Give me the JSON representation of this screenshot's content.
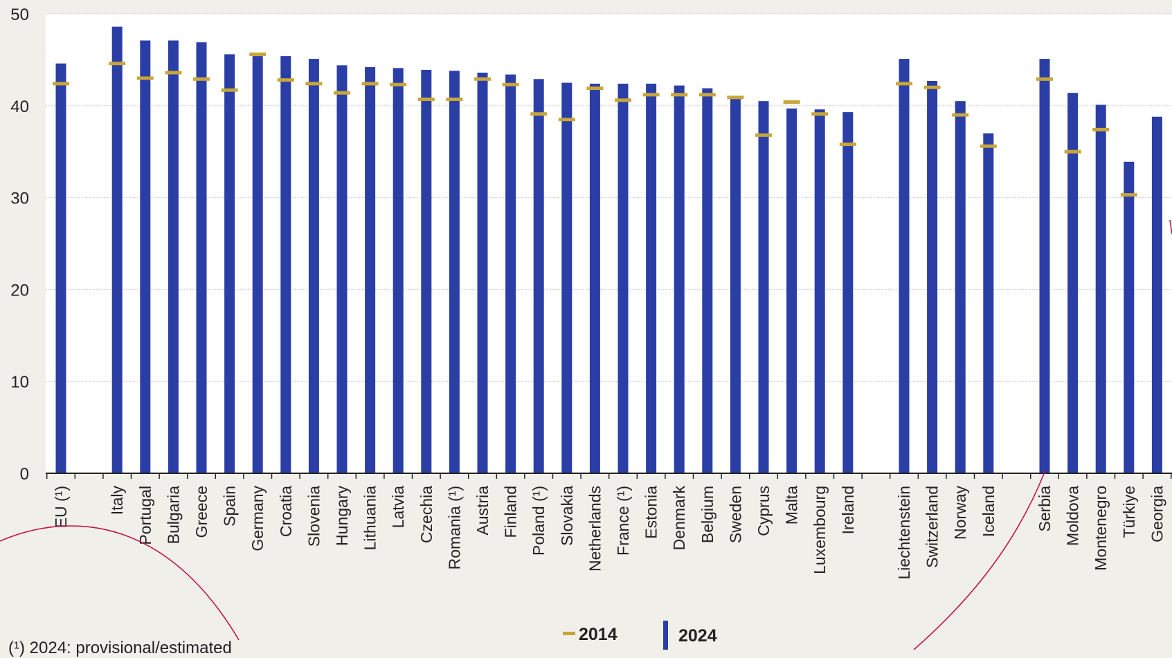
{
  "chart_data": {
    "type": "bar",
    "title": "",
    "xlabel": "",
    "ylabel": "",
    "ylim": [
      0,
      50
    ],
    "y_ticks": [
      0,
      10,
      20,
      30,
      40,
      50
    ],
    "grid": true,
    "legend_position": "bottom-center",
    "colors": {
      "bar_2024": "#2a3ea6",
      "marker_2014": "#c8a63a",
      "background": "#f1efea",
      "plot_background": "#ffffff",
      "annotation_curve": "#c0144a"
    },
    "groups": [
      {
        "categories": [
          "EU (¹)"
        ],
        "values_2024": [
          44.6
        ],
        "values_2014": [
          42.4
        ]
      },
      {
        "categories": [
          "Italy",
          "Portugal",
          "Bulgaria",
          "Greece",
          "Spain",
          "Germany",
          "Croatia",
          "Slovenia",
          "Hungary",
          "Lithuania",
          "Latvia",
          "Czechia",
          "Romania (¹)",
          "Austria",
          "Finland",
          "Poland (¹)",
          "Slovakia",
          "Netherlands",
          "France (¹)",
          "Estonia",
          "Denmark",
          "Belgium",
          "Sweden",
          "Cyprus",
          "Malta",
          "Luxembourg",
          "Ireland"
        ],
        "values_2024": [
          48.6,
          47.1,
          47.1,
          46.9,
          45.6,
          45.4,
          45.4,
          45.1,
          44.4,
          44.2,
          44.1,
          43.9,
          43.8,
          43.6,
          43.4,
          42.9,
          42.5,
          42.4,
          42.4,
          42.4,
          42.2,
          41.9,
          40.9,
          40.5,
          39.7,
          39.6,
          39.3
        ],
        "values_2014": [
          44.6,
          43.0,
          43.6,
          42.9,
          41.7,
          45.6,
          42.8,
          42.4,
          41.4,
          42.4,
          42.3,
          40.7,
          40.7,
          42.9,
          42.3,
          39.1,
          38.5,
          41.9,
          40.6,
          41.2,
          41.2,
          41.2,
          40.9,
          36.8,
          40.4,
          39.1,
          35.8
        ]
      },
      {
        "categories": [
          "Liechtenstein",
          "Switzerland",
          "Norway",
          "Iceland"
        ],
        "values_2024": [
          45.1,
          42.7,
          40.5,
          37.0
        ],
        "values_2014": [
          42.4,
          42.0,
          39.0,
          35.6
        ]
      },
      {
        "categories": [
          "Serbia",
          "Moldova",
          "Montenegro",
          "Türkiye",
          "Georgia"
        ],
        "values_2024": [
          45.1,
          41.4,
          40.1,
          33.9,
          38.8
        ],
        "values_2014": [
          42.9,
          35.0,
          37.4,
          30.3,
          null
        ]
      }
    ],
    "series": [
      {
        "name": "2014",
        "style": "marker"
      },
      {
        "name": "2024",
        "style": "bar"
      }
    ]
  },
  "footnote": "(¹) 2024: provisional/estimated"
}
